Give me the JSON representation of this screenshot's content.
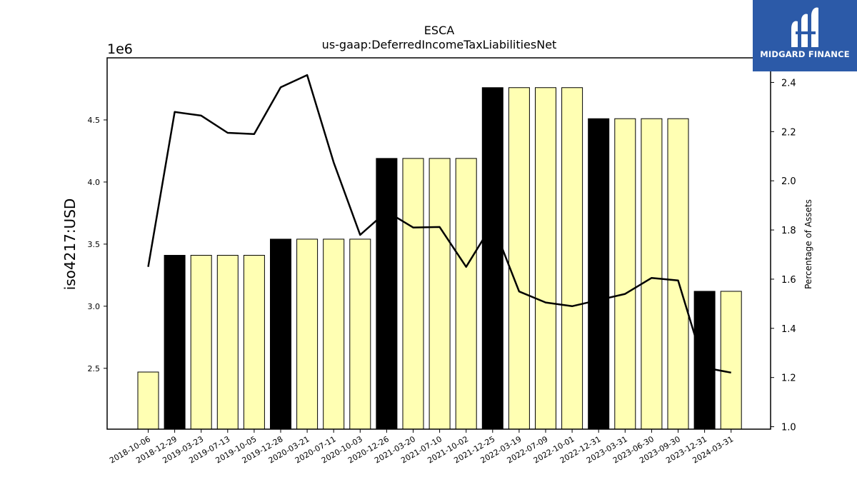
{
  "chart_data": {
    "type": "bar",
    "title": "ESCA",
    "subtitle": "us-gaap:DeferredIncomeTaxLiabilitiesNet",
    "ylabel": "iso4217:USD",
    "ylabel_right": "Percentage of Assets",
    "offset_text": "1e6",
    "categories": [
      "2018-10-06",
      "2018-12-29",
      "2019-03-23",
      "2019-07-13",
      "2019-10-05",
      "2019-12-28",
      "2020-03-21",
      "2020-07-11",
      "2020-10-03",
      "2020-12-26",
      "2021-03-20",
      "2021-07-10",
      "2021-10-02",
      "2021-12-25",
      "2022-03-19",
      "2022-07-09",
      "2022-10-01",
      "2022-12-31",
      "2023-03-31",
      "2023-06-30",
      "2023-09-30",
      "2023-12-31",
      "2024-03-31"
    ],
    "series": [
      {
        "type": "bar",
        "axis": "left",
        "values": [
          2470000,
          3410000,
          3410000,
          3410000,
          3410000,
          3540000,
          3540000,
          3540000,
          3540000,
          4190000,
          4190000,
          4190000,
          4190000,
          4760000,
          4760000,
          4760000,
          4760000,
          4510000,
          4510000,
          4510000,
          4510000,
          3120000,
          3120000
        ],
        "highlight": [
          false,
          true,
          false,
          false,
          false,
          true,
          false,
          false,
          false,
          true,
          false,
          false,
          false,
          true,
          false,
          false,
          false,
          true,
          false,
          false,
          false,
          true,
          false
        ]
      },
      {
        "type": "line",
        "axis": "right",
        "values": [
          1.65,
          2.28,
          2.265,
          2.195,
          2.19,
          2.38,
          2.43,
          2.075,
          1.78,
          1.875,
          1.81,
          1.812,
          1.65,
          1.825,
          1.55,
          1.505,
          1.49,
          1.515,
          1.54,
          1.605,
          1.595,
          1.24,
          1.22
        ]
      }
    ],
    "ylim": [
      2.01,
      5.0
    ],
    "yticks": [
      2.5,
      3.0,
      3.5,
      4.0,
      4.5
    ],
    "ytick_labels": [
      "2.5",
      "3.0",
      "3.5",
      "4.0",
      "4.5"
    ],
    "ylim_right": [
      0.99,
      2.5
    ],
    "yticks_right": [
      1.0,
      1.2,
      1.4,
      1.6,
      1.8,
      2.0,
      2.2,
      2.4
    ],
    "ytick_labels_right": [
      "1.0",
      "1.2",
      "1.4",
      "1.6",
      "1.8",
      "2.0",
      "2.2",
      "2.4"
    ],
    "colors": {
      "bar_normal": "#ffffb3",
      "bar_highlight": "#000000",
      "line": "#000000"
    }
  },
  "logo": {
    "text": "MIDGARD FINANCE",
    "color": "#2c5aa8"
  }
}
